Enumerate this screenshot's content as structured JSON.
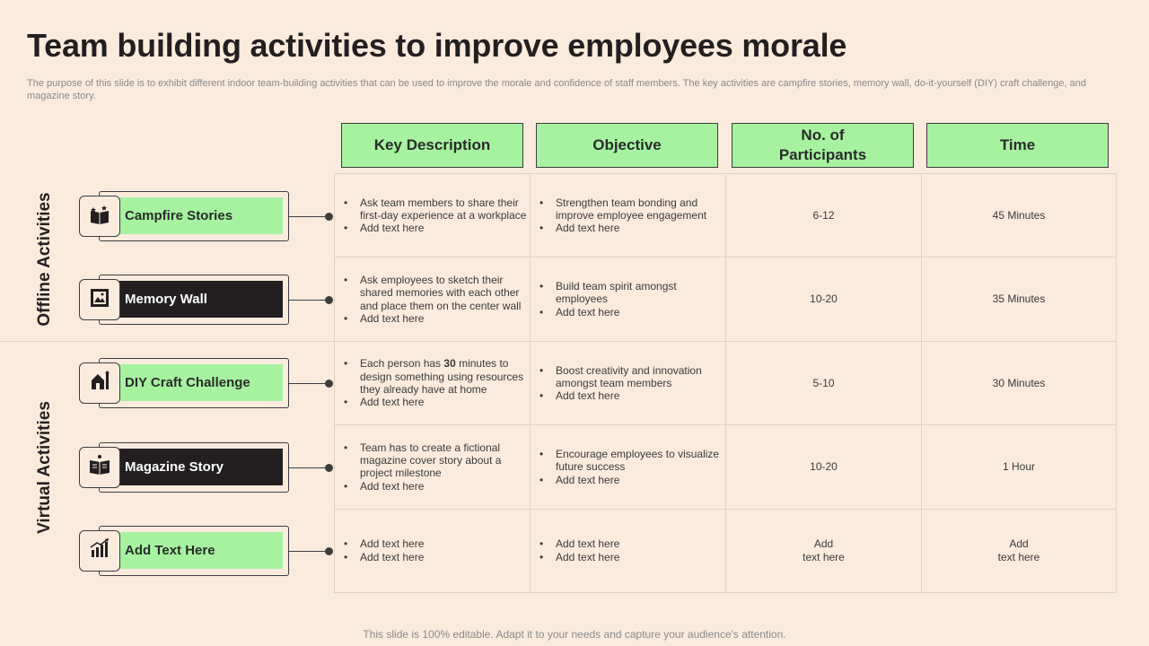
{
  "title": "Team building activities to improve employees morale",
  "subtitle": "The purpose of this slide is to exhibit different indoor team-building activities that can be used to improve the morale and confidence of staff members. The key activities are campfire stories, memory wall, do-it-yourself (DIY) craft challenge, and magazine story.",
  "footer": "This slide is 100% editable. Adapt it to your needs and capture your audience's attention.",
  "groups": {
    "offline": "Offline Activities",
    "virtual": "Virtual Activities"
  },
  "headers": {
    "description": "Key Description",
    "objective": "Objective",
    "participants_line1": "No. of",
    "participants_line2": "Participants",
    "time": "Time"
  },
  "colors": {
    "accent_green": "#a6f2a1",
    "dark": "#231f20",
    "background": "#fbebdd"
  },
  "rows": [
    {
      "activity": "Campfire Stories",
      "icon": "book-stars-icon",
      "style": "green",
      "desc": [
        "Ask team members to share their first-day experience at a workplace",
        "Add text here"
      ],
      "obj": [
        "Strengthen team bonding and improve employee engagement",
        "Add text here"
      ],
      "participants": "6-12",
      "time": "45 Minutes"
    },
    {
      "activity": "Memory Wall",
      "icon": "picture-frame-icon",
      "style": "dark",
      "desc": [
        "Ask employees to sketch their shared memories with each other and place them on the center wall",
        "Add text here"
      ],
      "obj": [
        "Build team spirit amongst employees",
        "Add text here"
      ],
      "participants": "10-20",
      "time": "35 Minutes"
    },
    {
      "activity": "DIY Craft Challenge",
      "icon": "craft-tools-icon",
      "style": "green",
      "desc": [
        "Each person has 30 minutes to design something using resources they already have at home",
        "Add text here"
      ],
      "obj": [
        "Boost creativity and innovation amongst team members",
        "Add text here"
      ],
      "participants": "5-10",
      "time": "30 Minutes"
    },
    {
      "activity": "Magazine Story",
      "icon": "open-book-icon",
      "style": "dark",
      "desc": [
        "Team has to create a fictional magazine cover story about a project milestone",
        "Add text here"
      ],
      "obj": [
        "Encourage employees to visualize future success",
        "Add text here"
      ],
      "participants": "10-20",
      "time": "1 Hour"
    },
    {
      "activity": "Add Text Here",
      "icon": "growth-chart-icon",
      "style": "green",
      "desc": [
        "Add text here",
        "Add text here"
      ],
      "obj": [
        "Add text here",
        "Add text here"
      ],
      "participants": "Add\ntext here",
      "time": "Add\ntext here"
    }
  ]
}
